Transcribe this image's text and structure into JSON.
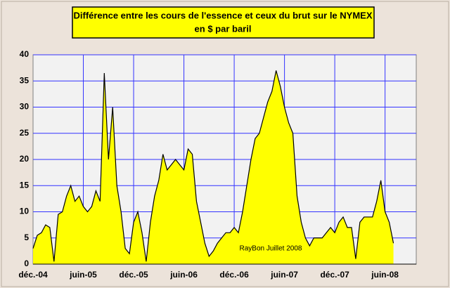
{
  "chart_data": {
    "type": "area",
    "title": "Différence entre les cours de l'essence et ceux du brut sur le NYMEX",
    "subtitle": "en $ par baril",
    "annotation": "RayBon Juillet 2008",
    "categories": [
      "déc.-04",
      null,
      null,
      null,
      null,
      null,
      null,
      null,
      null,
      null,
      null,
      null,
      "juin-05",
      null,
      null,
      null,
      null,
      null,
      null,
      null,
      null,
      null,
      null,
      null,
      "déc.-05",
      null,
      null,
      null,
      null,
      null,
      null,
      null,
      null,
      null,
      null,
      null,
      "juin-06",
      null,
      null,
      null,
      null,
      null,
      null,
      null,
      null,
      null,
      null,
      null,
      "déc.-06",
      null,
      null,
      null,
      null,
      null,
      null,
      null,
      null,
      null,
      null,
      null,
      "juin-07",
      null,
      null,
      null,
      null,
      null,
      null,
      null,
      null,
      null,
      null,
      null,
      "déc.-07",
      null,
      null,
      null,
      null,
      null,
      null,
      null,
      null,
      null,
      null,
      null,
      "juin-08",
      null,
      null
    ],
    "values": [
      3,
      5.5,
      6,
      7.5,
      7,
      0.5,
      9.5,
      10,
      13,
      15,
      12,
      13,
      11,
      10,
      11,
      14,
      12,
      36.5,
      20,
      30,
      15,
      10,
      3,
      2,
      8,
      10,
      6,
      0.5,
      8,
      13,
      16,
      21,
      18,
      19,
      20,
      19,
      18,
      22,
      21,
      12,
      8,
      4,
      1.5,
      2.5,
      4,
      5,
      6,
      6,
      7,
      6,
      10,
      15,
      20,
      24,
      25,
      28,
      31,
      33,
      37,
      34,
      30,
      27,
      25,
      13,
      8,
      5,
      3.5,
      5,
      5,
      5,
      6,
      7,
      6,
      8,
      9,
      7,
      7,
      1,
      8,
      9,
      9,
      9,
      12,
      16,
      10,
      8,
      4
    ],
    "color": "#ffff00",
    "ylim": [
      0,
      40
    ],
    "yticks": [
      0,
      5,
      10,
      15,
      20,
      25,
      30,
      35,
      40
    ],
    "grid": true
  }
}
